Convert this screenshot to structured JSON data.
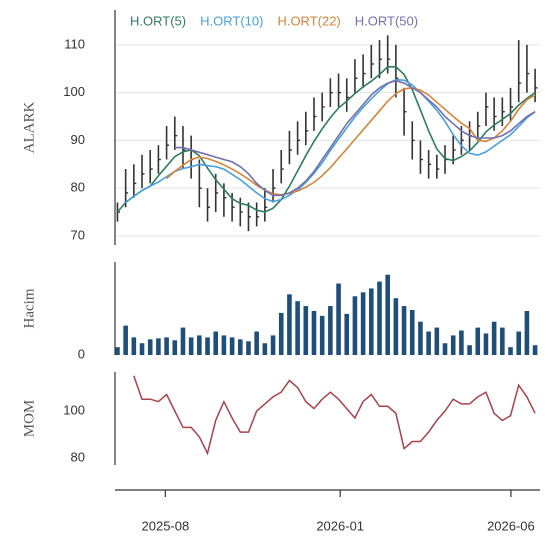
{
  "chart_data": [
    {
      "type": "ohlc",
      "ylabel": "ALARK",
      "color": "#333333",
      "grid": true,
      "legend": "top",
      "x": [
        0,
        1,
        2,
        3,
        4,
        5,
        6,
        7,
        8,
        9,
        10,
        11,
        12,
        13,
        14,
        15,
        16,
        17,
        18,
        19,
        20,
        21,
        22,
        23,
        24,
        25,
        26,
        27,
        28,
        29,
        30,
        31,
        32,
        33,
        34,
        35,
        36,
        37,
        38,
        39,
        40,
        41,
        42,
        43,
        44,
        45,
        46,
        47,
        48,
        49,
        50,
        51
      ],
      "xlim": [
        -0.3,
        51.6
      ],
      "xticks": [
        {
          "value": 5.85,
          "label": "2025-08"
        },
        {
          "value": 27.2,
          "label": "2026-01"
        },
        {
          "value": 48.05,
          "label": "2026-06"
        }
      ],
      "ylim": [
        68.1,
        117.3
      ],
      "yticks": [
        70,
        80,
        90,
        100,
        110
      ],
      "high": [
        77,
        84,
        85,
        87,
        88,
        89,
        93,
        95,
        93,
        91,
        86,
        80,
        83,
        81,
        79,
        78,
        77,
        77,
        80,
        84,
        88,
        92,
        94,
        96,
        99,
        100,
        103,
        104,
        103,
        107,
        108,
        110,
        111,
        112,
        110,
        101,
        94,
        90,
        88,
        87,
        89,
        91,
        93,
        94,
        96,
        100,
        99,
        99,
        101,
        111,
        110,
        105
      ],
      "low": [
        73,
        76,
        78,
        80,
        81,
        83,
        86,
        88,
        84,
        82,
        76,
        73,
        75,
        74,
        73,
        72,
        71,
        72,
        73,
        77,
        81,
        85,
        87,
        89,
        92,
        94,
        97,
        97,
        96,
        100,
        101,
        103,
        103,
        104,
        99,
        91,
        86,
        83,
        82,
        82,
        83,
        85,
        87,
        88,
        90,
        93,
        92,
        93,
        94,
        98,
        100,
        98
      ],
      "close": [
        75,
        79,
        81,
        83,
        84,
        86,
        89,
        91,
        88,
        86,
        80,
        76,
        79,
        78,
        76,
        75,
        74,
        74,
        76,
        80,
        84,
        88,
        90,
        92,
        95,
        97,
        100,
        100,
        99,
        103,
        104,
        106,
        107,
        107,
        103,
        96,
        90,
        86,
        85,
        84,
        86,
        88,
        90,
        91,
        93,
        97,
        95,
        96,
        97,
        102,
        104,
        101
      ],
      "series": [
        {
          "name": "H.ORT(5)",
          "color": "#2f7d5e",
          "values": [
            75,
            77,
            78.3,
            79.5,
            80.4,
            82.6,
            84.6,
            86.6,
            87.6,
            88,
            86.8,
            84.2,
            81.8,
            79.8,
            77.8,
            76.8,
            76.4,
            75.4,
            75,
            75.8,
            77.6,
            80.4,
            83.6,
            86.8,
            89.8,
            92.4,
            94.8,
            96.8,
            98.2,
            99.8,
            101.2,
            102.4,
            103.8,
            105.4,
            105.4,
            103.8,
            100.6,
            96.4,
            92,
            88.2,
            86.2,
            85.8,
            86.6,
            87.8,
            89.6,
            91.8,
            93.2,
            94.4,
            95.6,
            97.4,
            98.8,
            100
          ]
        },
        {
          "name": "H.ORT(10)",
          "color": "#4a9fd8",
          "values": [
            null,
            77,
            78.3,
            79.5,
            80.4,
            81.3,
            82.4,
            83.5,
            84.1,
            84.5,
            85,
            84.7,
            84.5,
            84,
            82.9,
            81.8,
            80.4,
            79,
            77.8,
            77.2,
            77.6,
            78.5,
            79.6,
            81.2,
            83.1,
            85.3,
            87.9,
            90.3,
            92.6,
            94.9,
            96.9,
            98.7,
            100.4,
            101.9,
            102.7,
            102.6,
            101.6,
            100,
            98.2,
            96.3,
            94,
            91.2,
            88.9,
            87.3,
            86.9,
            87.6,
            88.8,
            90,
            91.2,
            92.9,
            94.7,
            96
          ]
        },
        {
          "name": "H.ORT(22)",
          "color": "#d4843a",
          "values": [
            null,
            null,
            null,
            null,
            null,
            null,
            82,
            83.5,
            84.8,
            86,
            86.5,
            86.2,
            85.6,
            84.9,
            84,
            83,
            81.9,
            80.6,
            79.6,
            78.8,
            78.6,
            78.9,
            79.4,
            80.2,
            81.2,
            82.6,
            84.3,
            86.3,
            88.2,
            90.2,
            92.2,
            94.2,
            96.2,
            98.2,
            99.8,
            100.8,
            101,
            100.5,
            99.5,
            98,
            96.5,
            95,
            93.6,
            92.5,
            90,
            89.8,
            90.5,
            92,
            94,
            96.5,
            98.5,
            99.5
          ]
        },
        {
          "name": "H.ORT(50)",
          "color": "#7470b0",
          "values": [
            null,
            null,
            null,
            null,
            null,
            null,
            null,
            88.5,
            88.5,
            88,
            87.5,
            87,
            86.5,
            86,
            85.5,
            84.5,
            83,
            81,
            79.5,
            78.5,
            78.5,
            79,
            80,
            81.5,
            83.5,
            86,
            88.5,
            91,
            93.5,
            95.5,
            97.5,
            99.5,
            101,
            102,
            102.5,
            102,
            101,
            100,
            98.5,
            97,
            95,
            93.5,
            92,
            91,
            90.5,
            90.5,
            90.5,
            91,
            92,
            93.5,
            95,
            96
          ]
        }
      ]
    },
    {
      "type": "bar",
      "ylabel": "Hacim",
      "color": "#1f4e79",
      "ylim": [
        0,
        95
      ],
      "yticks": [
        0
      ],
      "values": [
        8,
        30,
        18,
        12,
        16,
        17,
        18,
        15,
        28,
        18,
        20,
        18,
        24,
        20,
        18,
        16,
        14,
        24,
        12,
        20,
        43,
        62,
        55,
        50,
        45,
        40,
        50,
        73,
        42,
        60,
        64,
        68,
        75,
        82,
        58,
        50,
        46,
        34,
        24,
        28,
        12,
        20,
        25,
        10,
        28,
        22,
        34,
        28,
        8,
        24,
        45,
        10
      ]
    },
    {
      "type": "line",
      "ylabel": "MOM",
      "color": "#a8434b",
      "ylim": [
        77,
        116.6
      ],
      "yticks": [
        80,
        100
      ],
      "values": [
        null,
        null,
        115,
        105,
        105,
        104,
        107,
        100,
        93,
        93,
        89,
        82,
        96,
        104,
        97,
        91,
        91,
        100,
        103,
        106,
        108,
        113,
        110,
        104,
        101,
        105,
        108,
        105,
        101,
        97,
        104,
        107,
        102,
        102,
        99,
        84,
        87,
        87,
        91,
        96,
        100,
        105,
        103,
        103,
        106,
        108,
        99,
        96,
        98,
        111,
        106,
        99
      ]
    }
  ]
}
